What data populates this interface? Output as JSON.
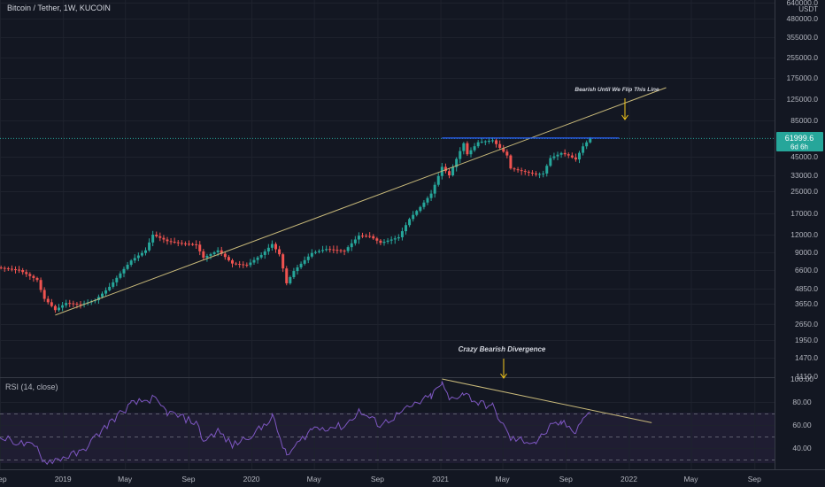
{
  "header": {
    "title": "Bitcoin / Tether, 1W, KUCOIN"
  },
  "price_axis": {
    "currency": "USDT",
    "ticks": [
      "640000.0",
      "480000.0",
      "355000.0",
      "255000.0",
      "175000.0",
      "125000.0",
      "85000.0",
      "45000.0",
      "33000.0",
      "25000.0",
      "17000.0",
      "12000.0",
      "9000.0",
      "6600.0",
      "4850.0",
      "3650.0",
      "2650.0",
      "1950.0",
      "1470.0",
      "1110.0"
    ],
    "current_price": "61999.6",
    "countdown": "6d 6h"
  },
  "time_axis": {
    "ticks": [
      "Sep",
      "2019",
      "May",
      "Sep",
      "2020",
      "May",
      "Sep",
      "2021",
      "May",
      "Sep",
      "2022",
      "May",
      "Sep"
    ]
  },
  "annotations": {
    "upper": "Bearish Until We Flip This Line",
    "lower": "Crazy Bearish Divergence"
  },
  "rsi": {
    "title": "RSI (14, close)",
    "ticks": [
      "100.00",
      "80.00",
      "60.00",
      "40.00"
    ],
    "bands": [
      70,
      50,
      30
    ],
    "range": [
      20,
      100
    ]
  },
  "colors": {
    "background": "#131722",
    "up": "#26a69a",
    "down": "#ef5350",
    "rsi_line": "#7e57c2",
    "rsi_band": "#2a2240",
    "trendline": "#c8b97a",
    "resistance": "#2962ff",
    "price_label": "#26a69a",
    "arrow": "#f0c419"
  },
  "chart_data": {
    "type": "candlestick",
    "title": "Bitcoin / Tether, 1W, KUCOIN",
    "y_scale": "log",
    "ylim": [
      1110,
      640000
    ],
    "x_range": [
      "2018-09",
      "2022-09"
    ],
    "price_series": [
      {
        "date": "2018-08-27",
        "value": 6900
      },
      {
        "date": "2018-10-08",
        "value": 6600
      },
      {
        "date": "2018-11-12",
        "value": 5600
      },
      {
        "date": "2018-11-26",
        "value": 4000
      },
      {
        "date": "2018-12-17",
        "value": 3300
      },
      {
        "date": "2019-01-07",
        "value": 3700
      },
      {
        "date": "2019-02-04",
        "value": 3600
      },
      {
        "date": "2019-03-04",
        "value": 3900
      },
      {
        "date": "2019-04-01",
        "value": 5000
      },
      {
        "date": "2019-05-13",
        "value": 7800
      },
      {
        "date": "2019-06-10",
        "value": 9300
      },
      {
        "date": "2019-06-24",
        "value": 12000
      },
      {
        "date": "2019-07-22",
        "value": 10800
      },
      {
        "date": "2019-08-19",
        "value": 10400
      },
      {
        "date": "2019-09-16",
        "value": 10200
      },
      {
        "date": "2019-09-30",
        "value": 8200
      },
      {
        "date": "2019-10-28",
        "value": 9300
      },
      {
        "date": "2019-11-25",
        "value": 7400
      },
      {
        "date": "2019-12-23",
        "value": 7200
      },
      {
        "date": "2020-01-20",
        "value": 8600
      },
      {
        "date": "2020-02-10",
        "value": 10300
      },
      {
        "date": "2020-02-24",
        "value": 8700
      },
      {
        "date": "2020-03-09",
        "value": 5300
      },
      {
        "date": "2020-03-23",
        "value": 6500
      },
      {
        "date": "2020-04-27",
        "value": 8900
      },
      {
        "date": "2020-05-25",
        "value": 9500
      },
      {
        "date": "2020-06-29",
        "value": 9200
      },
      {
        "date": "2020-07-27",
        "value": 11800
      },
      {
        "date": "2020-08-17",
        "value": 11700
      },
      {
        "date": "2020-09-07",
        "value": 10500
      },
      {
        "date": "2020-10-12",
        "value": 11500
      },
      {
        "date": "2020-11-02",
        "value": 15500
      },
      {
        "date": "2020-11-23",
        "value": 19000
      },
      {
        "date": "2020-12-14",
        "value": 24000
      },
      {
        "date": "2021-01-04",
        "value": 38000
      },
      {
        "date": "2021-01-18",
        "value": 33000
      },
      {
        "date": "2021-02-15",
        "value": 57000
      },
      {
        "date": "2021-02-22",
        "value": 47000
      },
      {
        "date": "2021-03-15",
        "value": 58000
      },
      {
        "date": "2021-04-12",
        "value": 60000
      },
      {
        "date": "2021-05-10",
        "value": 46000
      },
      {
        "date": "2021-05-17",
        "value": 37000
      },
      {
        "date": "2021-06-07",
        "value": 35500
      },
      {
        "date": "2021-07-05",
        "value": 33500
      },
      {
        "date": "2021-07-19",
        "value": 34000
      },
      {
        "date": "2021-08-02",
        "value": 44000
      },
      {
        "date": "2021-08-23",
        "value": 48000
      },
      {
        "date": "2021-09-06",
        "value": 46000
      },
      {
        "date": "2021-09-20",
        "value": 43000
      },
      {
        "date": "2021-10-04",
        "value": 54000
      },
      {
        "date": "2021-10-18",
        "value": 61999.6
      }
    ],
    "rsi_series": [
      {
        "date": "2018-08-27",
        "value": 50
      },
      {
        "date": "2018-11-12",
        "value": 40
      },
      {
        "date": "2018-11-26",
        "value": 28
      },
      {
        "date": "2018-12-17",
        "value": 30
      },
      {
        "date": "2019-02-04",
        "value": 36
      },
      {
        "date": "2019-04-01",
        "value": 62
      },
      {
        "date": "2019-05-13",
        "value": 78
      },
      {
        "date": "2019-06-24",
        "value": 83
      },
      {
        "date": "2019-07-22",
        "value": 71
      },
      {
        "date": "2019-09-16",
        "value": 62
      },
      {
        "date": "2019-09-30",
        "value": 46
      },
      {
        "date": "2019-10-28",
        "value": 55
      },
      {
        "date": "2019-11-25",
        "value": 42
      },
      {
        "date": "2020-01-20",
        "value": 57
      },
      {
        "date": "2020-02-10",
        "value": 68
      },
      {
        "date": "2020-03-09",
        "value": 33
      },
      {
        "date": "2020-04-27",
        "value": 57
      },
      {
        "date": "2020-06-29",
        "value": 59
      },
      {
        "date": "2020-07-27",
        "value": 72
      },
      {
        "date": "2020-09-07",
        "value": 60
      },
      {
        "date": "2020-11-02",
        "value": 75
      },
      {
        "date": "2020-12-14",
        "value": 85
      },
      {
        "date": "2021-01-04",
        "value": 96
      },
      {
        "date": "2021-01-18",
        "value": 82
      },
      {
        "date": "2021-02-15",
        "value": 88
      },
      {
        "date": "2021-03-15",
        "value": 79
      },
      {
        "date": "2021-04-12",
        "value": 76
      },
      {
        "date": "2021-05-17",
        "value": 48
      },
      {
        "date": "2021-06-07",
        "value": 47
      },
      {
        "date": "2021-07-05",
        "value": 45
      },
      {
        "date": "2021-08-02",
        "value": 58
      },
      {
        "date": "2021-08-23",
        "value": 62
      },
      {
        "date": "2021-09-20",
        "value": 55
      },
      {
        "date": "2021-10-04",
        "value": 66
      },
      {
        "date": "2021-10-18",
        "value": 71
      }
    ],
    "trendlines": [
      {
        "from": {
          "date": "2018-12-17",
          "value": 3050
        },
        "to": {
          "date": "2022-03-14",
          "value": 150000
        }
      },
      {
        "from": {
          "date": "2021-01-04",
          "value": 100
        },
        "to": {
          "date": "2022-02-14",
          "value": 62
        },
        "panel": "rsi"
      }
    ],
    "resistance_level": {
      "value": 61999.6,
      "from": "2021-01-04",
      "to": "2021-12-13"
    },
    "annotations": [
      {
        "text": "Bearish Until We Flip This Line",
        "date": "2021-12-13",
        "value": 90000
      },
      {
        "text": "Crazy Bearish Divergence",
        "date": "2021-05-31",
        "value": 1300
      }
    ]
  }
}
